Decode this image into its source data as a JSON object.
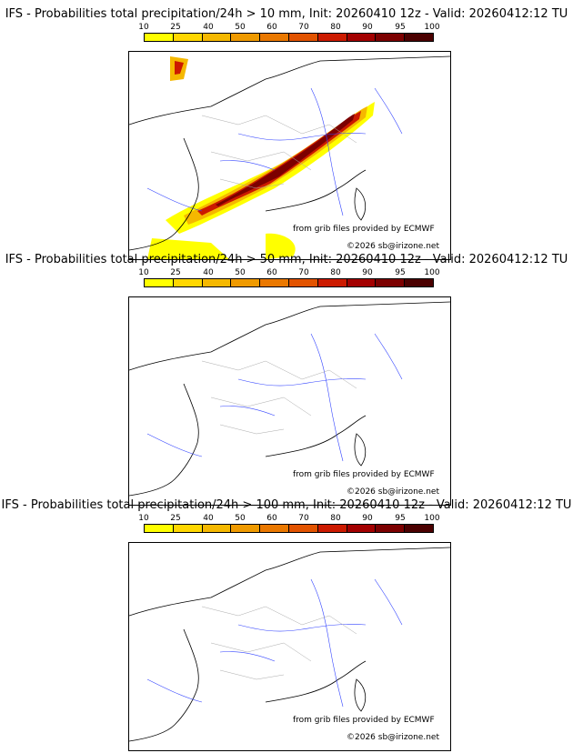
{
  "colorbar": {
    "ticks": [
      "10",
      "25",
      "40",
      "50",
      "60",
      "70",
      "80",
      "90",
      "95",
      "100"
    ],
    "colors": [
      "#ffff00",
      "#ffd700",
      "#f5b800",
      "#ef9a00",
      "#ea7800",
      "#e25300",
      "#cc1a00",
      "#a30000",
      "#7c0000",
      "#4b0000"
    ]
  },
  "credits": {
    "source": "from grib files provided by ECMWF",
    "copyright": "©2026 sb@irizone.net"
  },
  "panels": [
    {
      "title": "IFS - Probabilities total precipitation/24h > 10 mm, Init: 20260410 12z - Valid: 20260412:12 TU",
      "has_precip": true
    },
    {
      "title": "IFS - Probabilities total precipitation/24h > 50 mm, Init: 20260410 12z - Valid: 20260412:12 TU",
      "has_precip": false
    },
    {
      "title": "IFS - Probabilities total precipitation/24h > 100 mm, Init: 20260410 12z - Valid: 20260412:12 TU",
      "has_precip": false
    }
  ]
}
